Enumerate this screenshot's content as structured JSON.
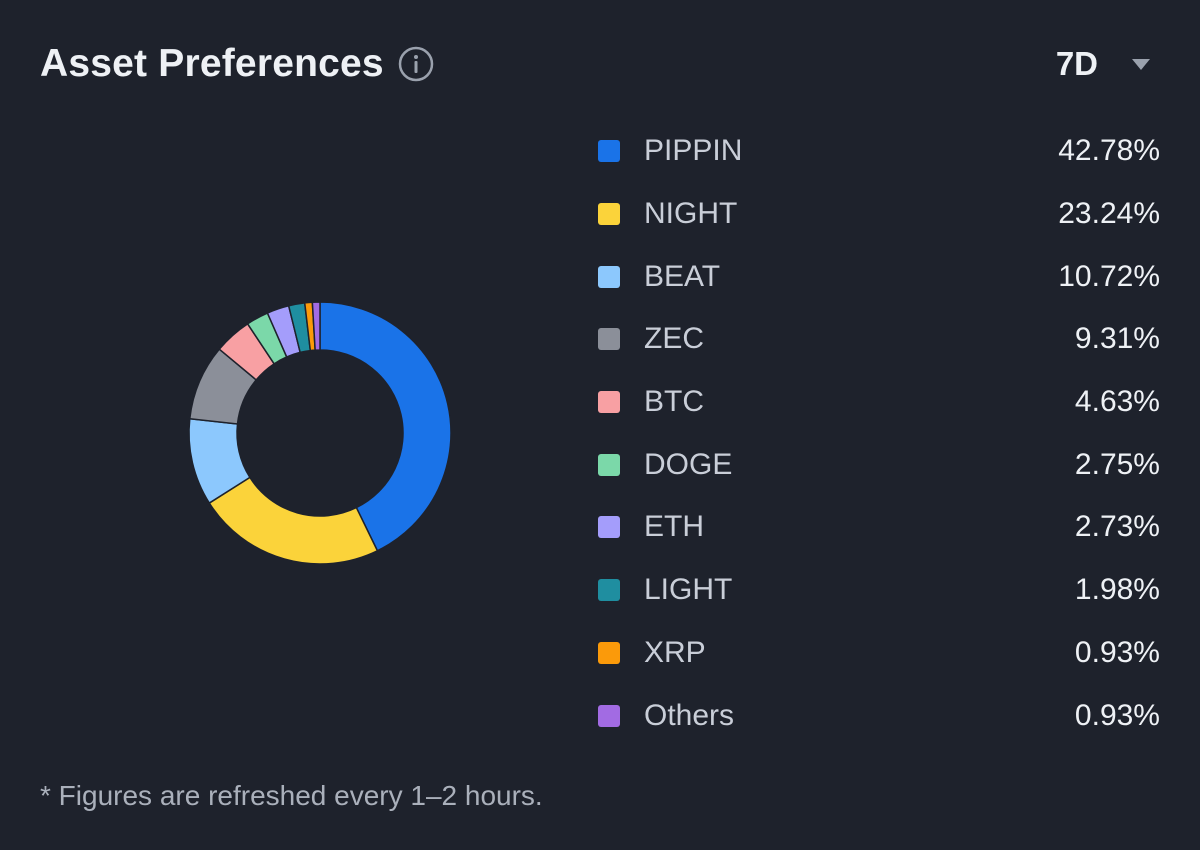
{
  "header": {
    "title": "Asset Preferences",
    "info_icon": "info-circle-icon",
    "period": "7D",
    "caret_icon": "caret-down-icon"
  },
  "chart_data": {
    "type": "pie",
    "donut": true,
    "categories": [
      "PIPPIN",
      "NIGHT",
      "BEAT",
      "ZEC",
      "BTC",
      "DOGE",
      "ETH",
      "LIGHT",
      "XRP",
      "Others"
    ],
    "values": [
      42.78,
      23.24,
      10.72,
      9.31,
      4.63,
      2.75,
      2.73,
      1.98,
      0.93,
      0.93
    ],
    "value_labels": [
      "42.78%",
      "23.24%",
      "10.72%",
      "9.31%",
      "4.63%",
      "2.75%",
      "2.73%",
      "1.98%",
      "0.93%",
      "0.93%"
    ],
    "colors": [
      "#1a73e8",
      "#fbd33a",
      "#8cc8fd",
      "#8b8f99",
      "#f8a0a3",
      "#7bd8a9",
      "#a49dfb",
      "#1f8ea0",
      "#fb9a0a",
      "#a26be3"
    ],
    "legend": "right"
  },
  "footnote": "* Figures are refreshed every 1–2 hours."
}
